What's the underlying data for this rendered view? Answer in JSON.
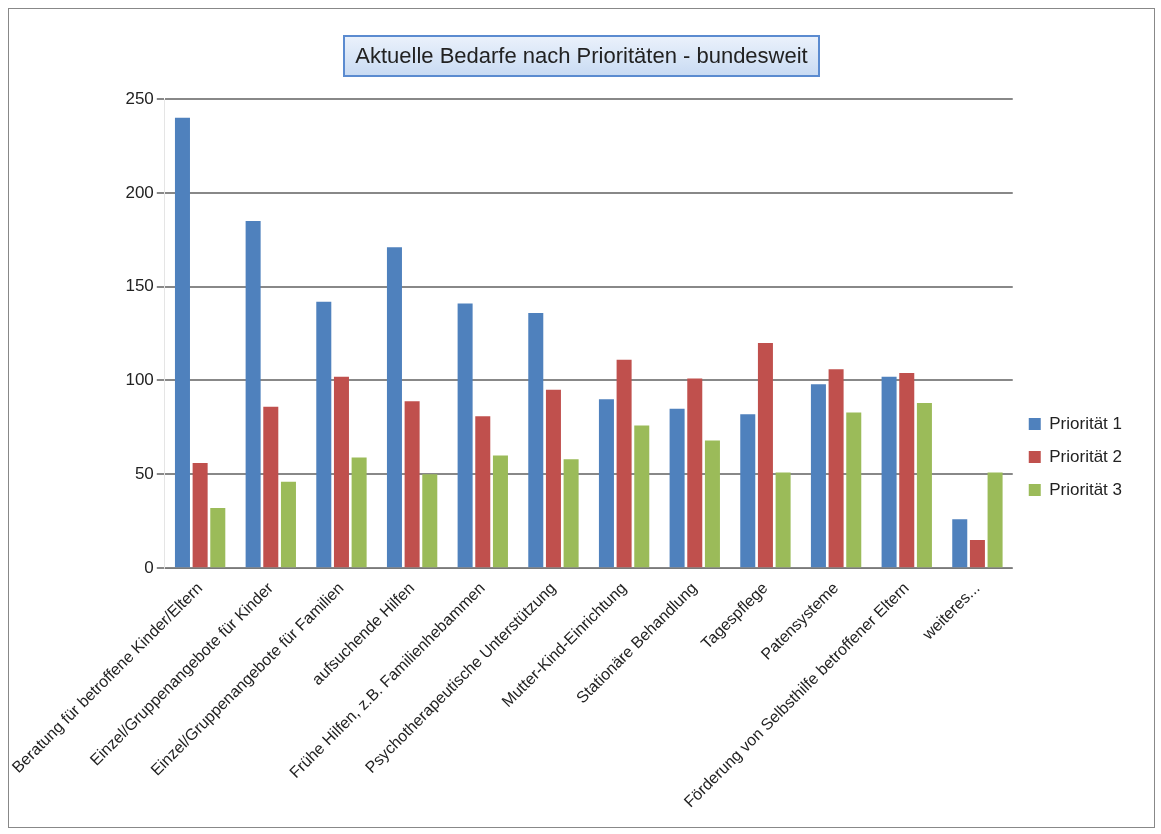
{
  "chart_data": {
    "type": "bar",
    "title": "Aktuelle Bedarfe nach Prioritäten  -  bundesweit",
    "categories": [
      "Beratung für betroffene Kinder/Eltern",
      "Einzel/Gruppenangebote für Kinder",
      "Einzel/Gruppenangebote für Familien",
      "aufsuchende Hilfen",
      "Frühe Hilfen, z.B. Familienhebammen",
      "Psychotherapeutische Unterstützung",
      "Mutter-Kind-Einrichtung",
      "Stationäre Behandlung",
      "Tagespflege",
      "Patensysteme",
      "Förderung von Selbsthilfe betroffener Eltern",
      "weiteres..."
    ],
    "series": [
      {
        "name": "Priorität 1",
        "color": "#4f81bd",
        "values": [
          240,
          185,
          142,
          171,
          141,
          136,
          90,
          85,
          82,
          98,
          102,
          26
        ]
      },
      {
        "name": "Priorität 2",
        "color": "#c0504d",
        "values": [
          56,
          86,
          102,
          89,
          81,
          95,
          111,
          101,
          120,
          106,
          104,
          15
        ]
      },
      {
        "name": "Priorität 3",
        "color": "#9bbb59",
        "values": [
          32,
          46,
          59,
          50,
          60,
          58,
          76,
          68,
          51,
          83,
          88,
          51
        ]
      }
    ],
    "ylim": [
      0,
      250
    ],
    "yticks": [
      0,
      50,
      100,
      150,
      200,
      250
    ],
    "grid": "y",
    "legend": "right"
  }
}
